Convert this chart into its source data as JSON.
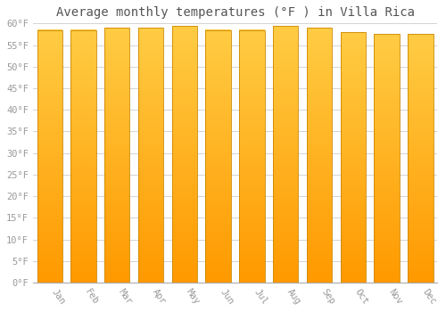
{
  "months": [
    "Jan",
    "Feb",
    "Mar",
    "Apr",
    "May",
    "Jun",
    "Jul",
    "Aug",
    "Sep",
    "Oct",
    "Nov",
    "Dec"
  ],
  "values": [
    58.5,
    58.5,
    59.0,
    59.0,
    59.5,
    58.5,
    58.5,
    59.5,
    59.0,
    58.0,
    57.5,
    57.5
  ],
  "title": "Average monthly temperatures (°F ) in Villa Rica",
  "ylim": [
    0,
    60
  ],
  "ytick_step": 5,
  "bar_color_top": "#FFCC44",
  "bar_color_bottom": "#FF9900",
  "bar_edge_color": "#CC8800",
  "background_color": "#ffffff",
  "grid_color": "#cccccc",
  "title_fontsize": 10,
  "tick_fontsize": 7.5,
  "font_family": "monospace"
}
